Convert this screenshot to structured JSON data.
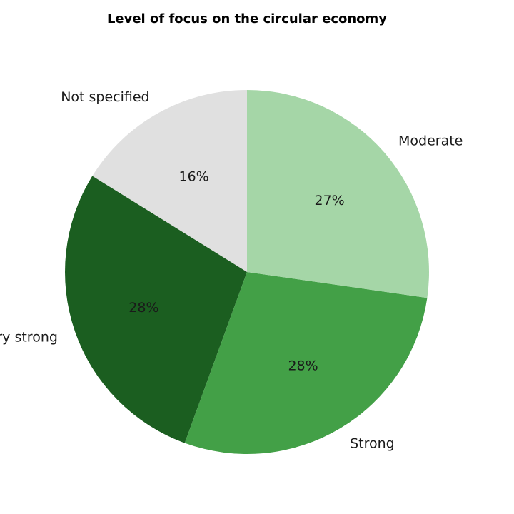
{
  "chart_data": {
    "type": "pie",
    "title": "Level of focus on the circular economy",
    "start_angle_deg": 90,
    "direction": "counterclockwise",
    "slices": [
      {
        "label": "Not specified",
        "value": 16,
        "pct_label": "16%",
        "color": "#e0e0e0"
      },
      {
        "label": "Very strong",
        "value": 28,
        "pct_label": "28%",
        "color": "#1b5e20"
      },
      {
        "label": "Strong",
        "value": 28,
        "pct_label": "28%",
        "color": "#43a047"
      },
      {
        "label": "Moderate",
        "value": 27,
        "pct_label": "27%",
        "color": "#a5d6a7"
      }
    ]
  }
}
